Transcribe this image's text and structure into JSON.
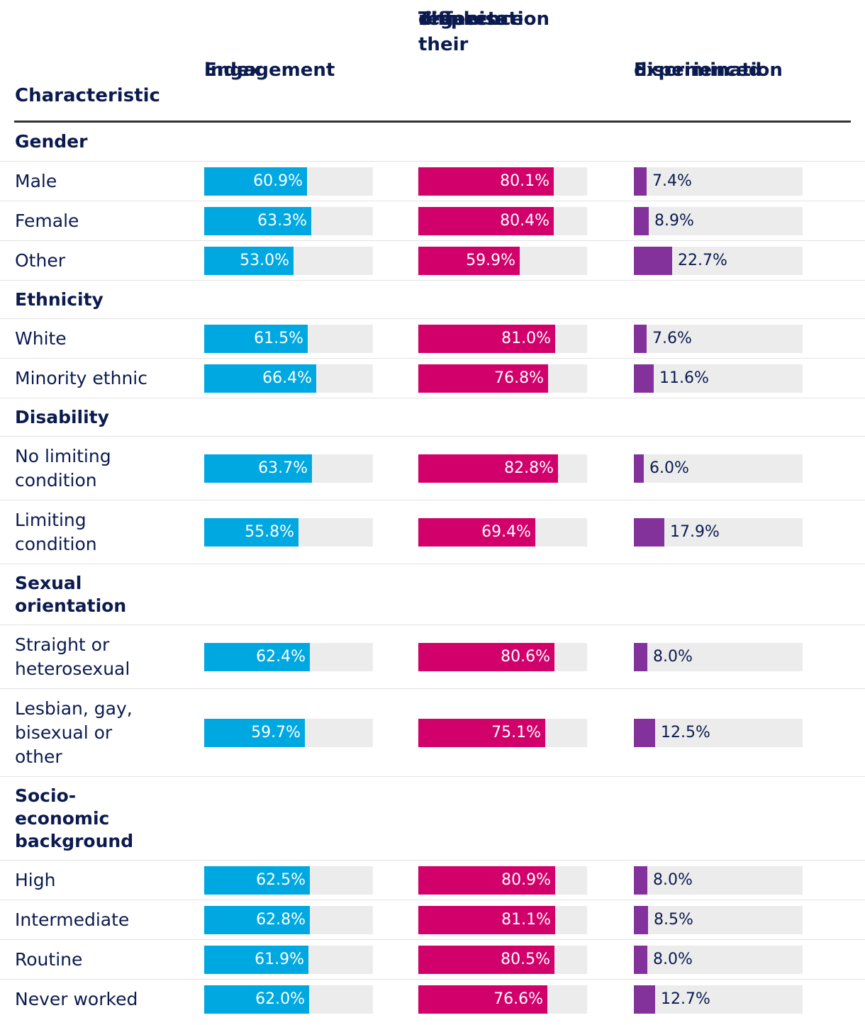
{
  "header": {
    "characteristic": "Characteristic",
    "engagement": [
      "Engagement",
      "index"
    ],
    "respects": [
      "Think their",
      "organisation",
      "respects",
      "difference"
    ],
    "discrimination": [
      "Experienced",
      "discrimination"
    ]
  },
  "colors": {
    "engagement": "#00a8e1",
    "respects": "#d1006b",
    "discrimination": "#84329b",
    "track": "#ececec",
    "text": "#0b1b4f"
  },
  "chart_data": {
    "type": "bar",
    "orientation": "horizontal",
    "series": [
      {
        "key": "engagement",
        "name": "Engagement index"
      },
      {
        "key": "respects",
        "name": "Think their organisation respects difference"
      },
      {
        "key": "discrimination",
        "name": "Experienced discrimination"
      }
    ],
    "axis_range_percent": {
      "engagement": [
        0,
        100
      ],
      "respects": [
        0,
        100
      ],
      "discrimination": [
        0,
        100
      ]
    },
    "groups": [
      {
        "label": [
          "Gender"
        ],
        "rows": [
          {
            "label": [
              "Male"
            ],
            "engagement": 60.9,
            "respects": 80.1,
            "discrimination": 7.4
          },
          {
            "label": [
              "Female"
            ],
            "engagement": 63.3,
            "respects": 80.4,
            "discrimination": 8.9
          },
          {
            "label": [
              "Other"
            ],
            "engagement": 53.0,
            "respects": 59.9,
            "discrimination": 22.7
          }
        ]
      },
      {
        "label": [
          "Ethnicity"
        ],
        "rows": [
          {
            "label": [
              "White"
            ],
            "engagement": 61.5,
            "respects": 81.0,
            "discrimination": 7.6
          },
          {
            "label": [
              "Minority ethnic"
            ],
            "engagement": 66.4,
            "respects": 76.8,
            "discrimination": 11.6
          }
        ]
      },
      {
        "label": [
          "Disability"
        ],
        "rows": [
          {
            "label": [
              "No limiting",
              "condition"
            ],
            "engagement": 63.7,
            "respects": 82.8,
            "discrimination": 6.0
          },
          {
            "label": [
              "Limiting",
              "condition"
            ],
            "engagement": 55.8,
            "respects": 69.4,
            "discrimination": 17.9
          }
        ]
      },
      {
        "label": [
          "Sexual",
          "orientation"
        ],
        "rows": [
          {
            "label": [
              "Straight or",
              "heterosexual"
            ],
            "engagement": 62.4,
            "respects": 80.6,
            "discrimination": 8.0
          },
          {
            "label": [
              "Lesbian, gay,",
              "bisexual or",
              "other"
            ],
            "engagement": 59.7,
            "respects": 75.1,
            "discrimination": 12.5
          }
        ]
      },
      {
        "label": [
          "Socio-",
          "economic",
          "background"
        ],
        "rows": [
          {
            "label": [
              "High"
            ],
            "engagement": 62.5,
            "respects": 80.9,
            "discrimination": 8.0
          },
          {
            "label": [
              "Intermediate"
            ],
            "engagement": 62.8,
            "respects": 81.1,
            "discrimination": 8.5
          },
          {
            "label": [
              "Routine"
            ],
            "engagement": 61.9,
            "respects": 80.5,
            "discrimination": 8.0
          },
          {
            "label": [
              "Never worked"
            ],
            "engagement": 62.0,
            "respects": 76.6,
            "discrimination": 12.7
          }
        ]
      }
    ]
  }
}
